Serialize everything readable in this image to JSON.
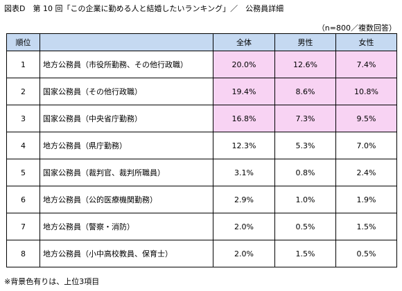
{
  "title": "図表D　第 10 回「この企業に勤める人と結婚したいランキング」／　公務員詳細",
  "sample_note": "（n=800／複数回答）",
  "headers": {
    "rank": "順位",
    "name": "",
    "total": "全体",
    "male": "男性",
    "female": "女性"
  },
  "highlight_color": "#f8d3f3",
  "header_color": "#c5d9f1",
  "rows": [
    {
      "rank": "1",
      "name": "地方公務員（市役所勤務、その他行政職）",
      "total": "20.0%",
      "male": "12.6%",
      "female": "7.4%",
      "highlighted": true
    },
    {
      "rank": "2",
      "name": "国家公務員（その他行政職）",
      "total": "19.4%",
      "male": "8.6%",
      "female": "10.8%",
      "highlighted": true
    },
    {
      "rank": "3",
      "name": "国家公務員（中央省庁勤務）",
      "total": "16.8%",
      "male": "7.3%",
      "female": "9.5%",
      "highlighted": true
    },
    {
      "rank": "4",
      "name": "地方公務員（県庁勤務）",
      "total": "12.3%",
      "male": "5.3%",
      "female": "7.0%",
      "highlighted": false
    },
    {
      "rank": "5",
      "name": "国家公務員（裁判官、裁判所職員）",
      "total": "3.1%",
      "male": "0.8%",
      "female": "2.4%",
      "highlighted": false
    },
    {
      "rank": "6",
      "name": "地方公務員（公的医療機関勤務）",
      "total": "2.9%",
      "male": "1.0%",
      "female": "1.9%",
      "highlighted": false
    },
    {
      "rank": "7",
      "name": "地方公務員（警察・消防）",
      "total": "2.0%",
      "male": "0.5%",
      "female": "1.5%",
      "highlighted": false
    },
    {
      "rank": "8",
      "name": "地方公務員（小中高校教員、保育士）",
      "total": "2.0%",
      "male": "1.5%",
      "female": "0.5%",
      "highlighted": false
    }
  ],
  "footnote": "※背景色有りは、上位3項目"
}
